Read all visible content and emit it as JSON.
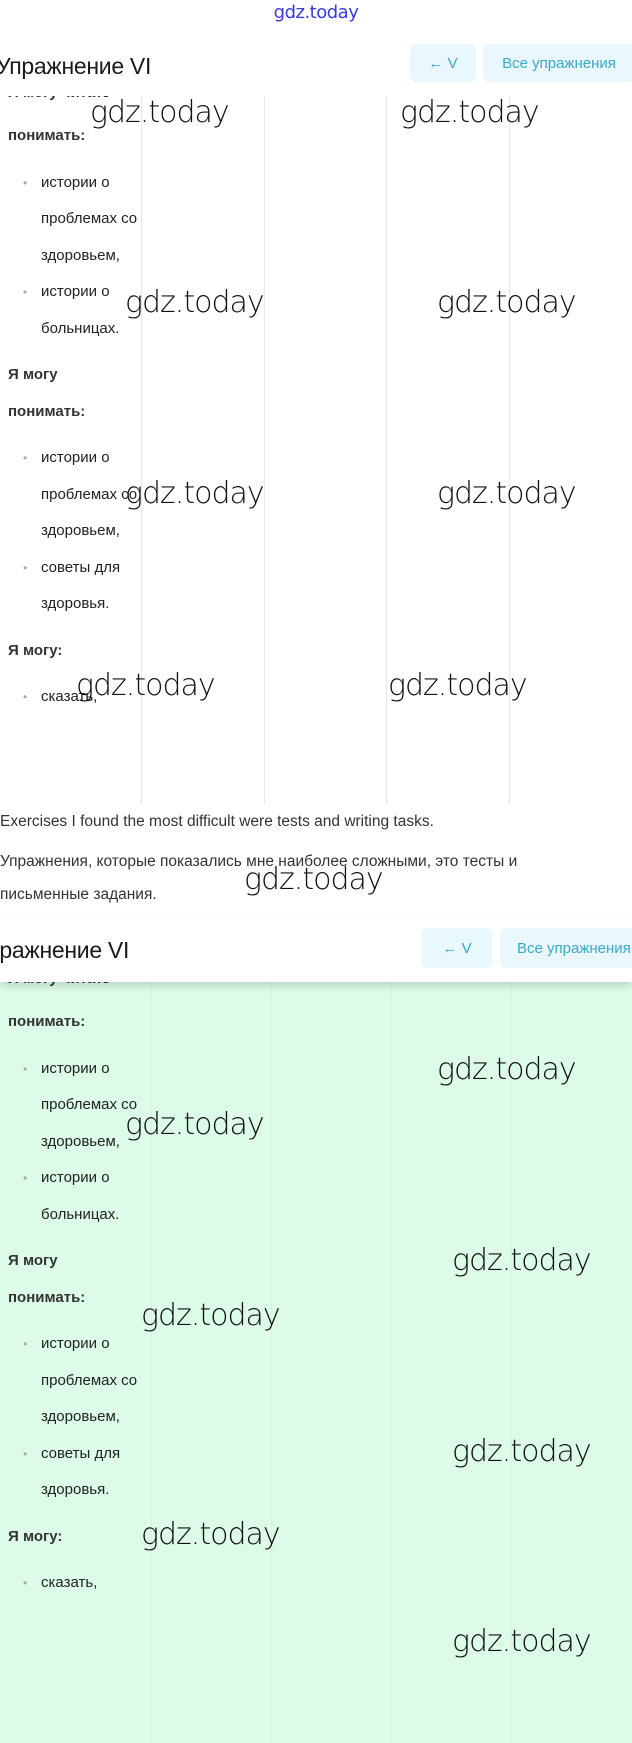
{
  "site_mark": "gdz.today",
  "panels": [
    {
      "title": "Упражнение VI",
      "prev_button": "← V",
      "all_button": "Все упражнения"
    },
    {
      "title": "Упражнение VI",
      "prev_button": "← V",
      "all_button": "Все упражнения"
    }
  ],
  "table": {
    "cut_top": "Я могу читать:",
    "blocks": [
      {
        "heading": "понимать:",
        "items": [
          "истории о проблемах со здоровьем,",
          "истории о больницах."
        ]
      },
      {
        "heading": "Я могу понимать:",
        "items": [
          "истории о проблемах со здоровьем,",
          "советы для здоровья."
        ]
      },
      {
        "heading": "Я могу:",
        "items": [
          "сказать,"
        ]
      }
    ]
  },
  "answer": {
    "english": "Exercises I found the most difficult were tests and writing tasks.",
    "russian": "Упражнения, которые показались мне наиболее сложными, это тесты и письменные задания."
  },
  "watermark": "gdz.today",
  "colors": {
    "accent": "#3aa9c9",
    "button_bg": "#e8f8fc",
    "highlight_bg": "#dcfce9"
  }
}
